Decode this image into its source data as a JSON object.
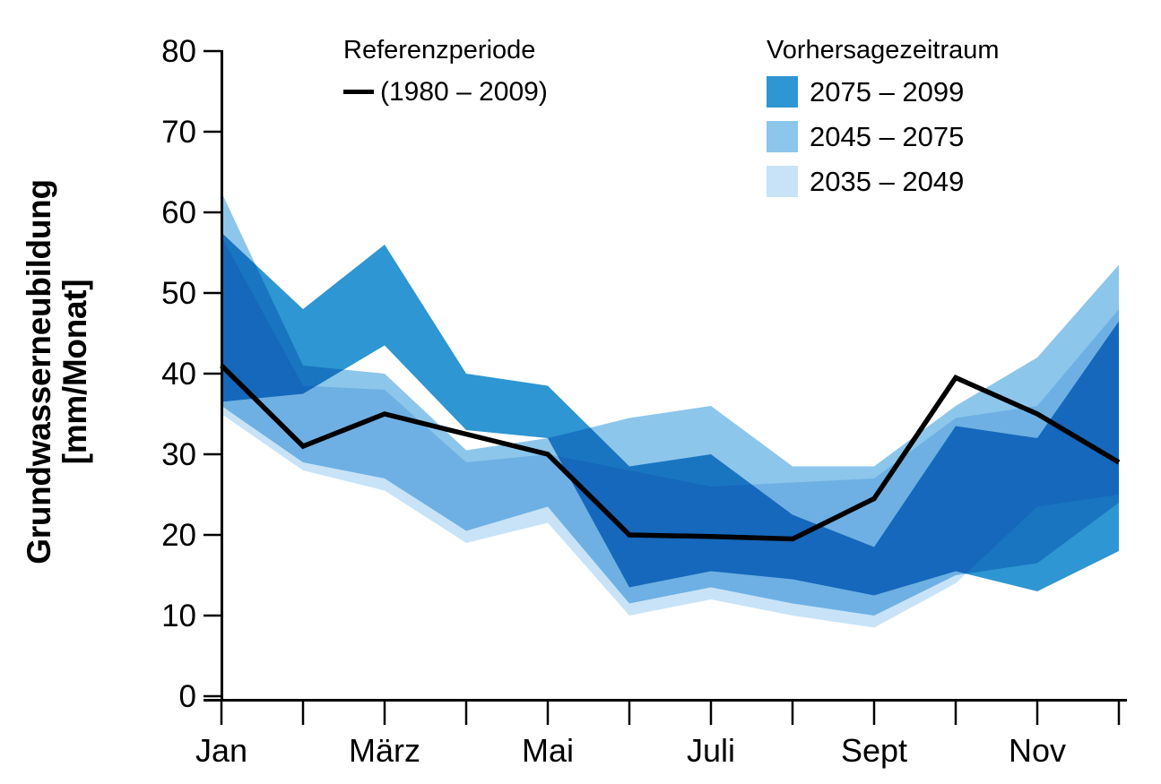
{
  "figure": {
    "y_axis_title_line1": "Grundwasserneubildung",
    "y_axis_title_line2": "[mm/Monat]"
  },
  "legend": {
    "reference_title": "Referenzperiode",
    "reference_label": "(1980 – 2009)",
    "reference_line_color": "#000000",
    "forecast_title": "Vorhersagezeitraum",
    "forecast_items": [
      {
        "label": "2075 – 2099",
        "color": "#2E96D2"
      },
      {
        "label": "2045 – 2075",
        "color": "#8CC6EB"
      },
      {
        "label": "2035 – 2049",
        "color": "#C8E3F7"
      }
    ]
  },
  "chart_data": {
    "type": "area",
    "title": "",
    "xlabel": "",
    "ylabel": "Grundwasserneubildung [mm/Monat]",
    "ylim": [
      0,
      80
    ],
    "yticks": [
      0,
      10,
      20,
      30,
      40,
      50,
      60,
      70,
      80
    ],
    "x_tick_labels": [
      "Jan",
      "",
      "März",
      "",
      "Mai",
      "",
      "Juli",
      "",
      "Sept",
      "",
      "Nov",
      ""
    ],
    "grid": false,
    "legend_position": "top",
    "series": [
      {
        "name": "Referenzperiode (1980 – 2009)",
        "type": "line",
        "color": "#000000",
        "values": [
          41,
          31,
          35,
          32.5,
          30,
          20,
          19.8,
          19.5,
          24.5,
          39.5,
          35,
          29
        ]
      },
      {
        "name": "2075 – 2099",
        "type": "band",
        "color": "#2E96D2",
        "upper": [
          57.5,
          48,
          56,
          40,
          38.5,
          28.5,
          30,
          22.5,
          18.5,
          33.5,
          32,
          46.5
        ],
        "lower": [
          36.5,
          37.5,
          43.5,
          33,
          32,
          13.5,
          15.5,
          14.5,
          12.5,
          15.5,
          13,
          18
        ]
      },
      {
        "name": "2045 – 2075",
        "type": "band",
        "color": "#8CC6EB",
        "upper": [
          62.5,
          41,
          40,
          30.5,
          32,
          34.5,
          36,
          28.5,
          28.5,
          36,
          42,
          53.5
        ],
        "lower": [
          36,
          29,
          27,
          20.5,
          23.5,
          11.5,
          13.5,
          11.5,
          10,
          15,
          16.5,
          24
        ]
      },
      {
        "name": "2035 – 2049",
        "type": "band",
        "color": "#C8E3F7",
        "upper": [
          57,
          38.5,
          38,
          29,
          30,
          28,
          26,
          26.5,
          27,
          34.5,
          36,
          48
        ],
        "lower": [
          35,
          28,
          25.5,
          19,
          21.5,
          10,
          12,
          10,
          8.5,
          14,
          23.5,
          25
        ]
      }
    ]
  }
}
